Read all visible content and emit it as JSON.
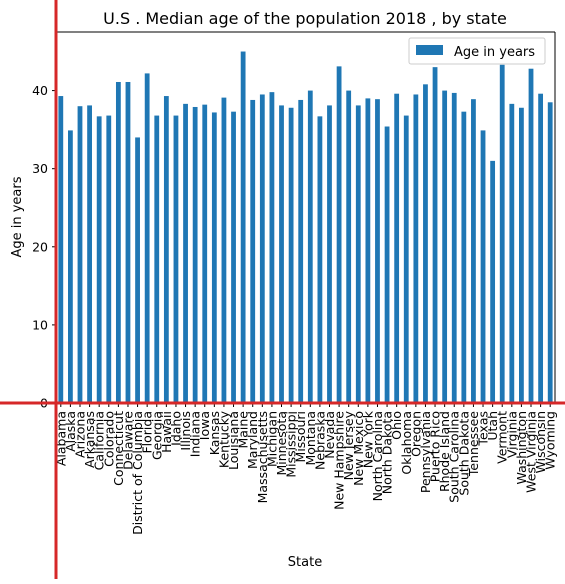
{
  "chart_data": {
    "type": "bar",
    "title": "U.S . Median age of the population 2018 , by state",
    "xlabel": "State",
    "ylabel": "Age in years",
    "ylim": [
      0,
      47.5
    ],
    "yticks": [
      0,
      10,
      20,
      30,
      40
    ],
    "grid": false,
    "legend_position": "top-right",
    "colors": {
      "bar": "#1f77b4",
      "axis": "#000000",
      "overlay_line": "#d62728"
    },
    "series": [
      {
        "name": "Age in years",
        "values": [
          39.3,
          34.9,
          38.0,
          38.1,
          36.7,
          36.8,
          41.1,
          41.1,
          34.0,
          42.2,
          36.8,
          39.3,
          36.8,
          38.3,
          37.9,
          38.2,
          37.2,
          39.1,
          37.3,
          45.0,
          38.8,
          39.5,
          39.8,
          38.1,
          37.8,
          38.8,
          40.0,
          36.7,
          38.1,
          43.1,
          40.0,
          38.1,
          39.0,
          38.9,
          35.4,
          39.6,
          36.8,
          39.5,
          40.8,
          43.0,
          40.0,
          39.7,
          37.3,
          38.9,
          34.9,
          31.0,
          43.3,
          38.3,
          37.8,
          42.8,
          39.6,
          38.5
        ]
      }
    ],
    "categories": [
      "Alabama",
      "Alaska",
      "Arizona",
      "Arkansas",
      "California",
      "Colorado",
      "Connecticut",
      "Delaware",
      "District of Columbia",
      "Florida",
      "Georgia",
      "Hawaii",
      "Idaho",
      "Illinois",
      "Indiana",
      "Iowa",
      "Kansas",
      "Kentucky",
      "Louisiana",
      "Maine",
      "Maryland",
      "Massachusetts",
      "Michigan",
      "Minnesota",
      "Mississippi",
      "Missouri",
      "Montana",
      "Nebraska",
      "Nevada",
      "New Hampshire",
      "New Jersey",
      "New Mexico",
      "New York",
      "North Carolina",
      "North Dakota",
      "Ohio",
      "Oklahoma",
      "Oregon",
      "Pennsylvania",
      "Puerto Rico",
      "Rhode Island",
      "South Carolina",
      "South Dakota",
      "Tennessee",
      "Texas",
      "Utah",
      "Vermont",
      "Virginia",
      "Washington",
      "West Virginia",
      "Wisconsin",
      "Wyoming"
    ]
  }
}
